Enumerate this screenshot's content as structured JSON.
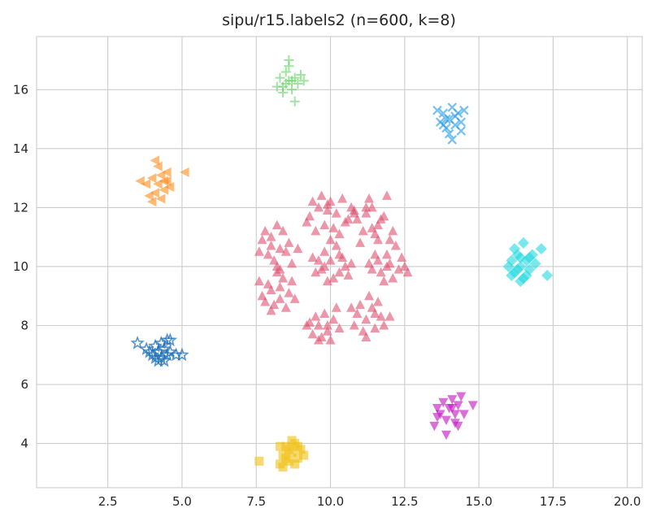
{
  "chart_data": {
    "type": "scatter",
    "title": "sipu/r15.labels2 (n=600, k=8)",
    "xlabel": "",
    "ylabel": "",
    "xlim": [
      0.1,
      20.5
    ],
    "ylim": [
      2.5,
      17.8
    ],
    "xticks": [
      2.5,
      5.0,
      7.5,
      10.0,
      12.5,
      15.0,
      17.5,
      20.0
    ],
    "xtick_labels": [
      "2.5",
      "5.0",
      "7.5",
      "10.0",
      "12.5",
      "15.0",
      "17.5",
      "20.0"
    ],
    "yticks": [
      4,
      6,
      8,
      10,
      12,
      14,
      16
    ],
    "ytick_labels": [
      "4",
      "6",
      "8",
      "10",
      "12",
      "14",
      "16"
    ],
    "grid": true,
    "legend": "none",
    "series": [
      {
        "marker": "triangle-up",
        "color": "#e05070",
        "points": [
          [
            10.2,
            11.8
          ],
          [
            9.6,
            12.0
          ],
          [
            10.6,
            11.6
          ],
          [
            9.3,
            11.7
          ],
          [
            10.0,
            12.2
          ],
          [
            9.8,
            11.4
          ],
          [
            10.4,
            12.3
          ],
          [
            9.5,
            11.2
          ],
          [
            10.7,
            12.0
          ],
          [
            9.9,
            11.9
          ],
          [
            10.1,
            11.3
          ],
          [
            9.4,
            12.2
          ],
          [
            10.5,
            11.5
          ],
          [
            9.7,
            12.4
          ],
          [
            10.3,
            11.1
          ],
          [
            9.2,
            11.5
          ],
          [
            10.8,
            11.8
          ],
          [
            9.9,
            12.1
          ],
          [
            11.2,
            11.8
          ],
          [
            11.6,
            11.4
          ],
          [
            10.9,
            11.6
          ],
          [
            11.4,
            12.0
          ],
          [
            11.8,
            11.7
          ],
          [
            11.1,
            11.2
          ],
          [
            11.5,
            11.1
          ],
          [
            10.8,
            11.9
          ],
          [
            11.3,
            12.3
          ],
          [
            11.9,
            12.4
          ],
          [
            11.0,
            10.8
          ],
          [
            11.7,
            11.6
          ],
          [
            12.1,
            11.2
          ],
          [
            11.2,
            12.0
          ],
          [
            11.6,
            10.9
          ],
          [
            11.4,
            11.3
          ],
          [
            8.0,
            11.0
          ],
          [
            8.3,
            10.6
          ],
          [
            7.9,
            10.4
          ],
          [
            8.4,
            11.2
          ],
          [
            8.1,
            10.2
          ],
          [
            8.6,
            10.8
          ],
          [
            7.7,
            10.9
          ],
          [
            8.2,
            11.4
          ],
          [
            8.5,
            10.5
          ],
          [
            7.8,
            11.2
          ],
          [
            8.3,
            9.9
          ],
          [
            8.7,
            10.1
          ],
          [
            8.0,
            10.7
          ],
          [
            8.9,
            10.6
          ],
          [
            7.6,
            10.5
          ],
          [
            8.2,
            10.0
          ],
          [
            10.0,
            10.2
          ],
          [
            9.7,
            9.9
          ],
          [
            10.3,
            9.8
          ],
          [
            9.8,
            10.5
          ],
          [
            10.1,
            9.6
          ],
          [
            10.4,
            10.3
          ],
          [
            9.6,
            10.2
          ],
          [
            10.2,
            10.7
          ],
          [
            9.9,
            9.5
          ],
          [
            10.5,
            10.0
          ],
          [
            9.5,
            9.8
          ],
          [
            10.0,
            10.9
          ],
          [
            10.6,
            9.7
          ],
          [
            9.8,
            10.0
          ],
          [
            10.3,
            10.4
          ],
          [
            9.4,
            10.3
          ],
          [
            10.7,
            10.1
          ],
          [
            12.0,
            10.1
          ],
          [
            11.7,
            9.8
          ],
          [
            12.3,
            9.9
          ],
          [
            11.9,
            10.4
          ],
          [
            12.1,
            9.6
          ],
          [
            12.4,
            10.3
          ],
          [
            11.6,
            10.2
          ],
          [
            12.2,
            10.7
          ],
          [
            11.8,
            9.5
          ],
          [
            12.5,
            10.0
          ],
          [
            11.5,
            10.4
          ],
          [
            12.0,
            10.9
          ],
          [
            11.3,
            10.1
          ],
          [
            12.6,
            9.8
          ],
          [
            11.9,
            10.0
          ],
          [
            11.4,
            9.9
          ],
          [
            8.0,
            9.2
          ],
          [
            8.3,
            8.9
          ],
          [
            7.9,
            9.4
          ],
          [
            8.4,
            9.6
          ],
          [
            8.1,
            8.7
          ],
          [
            8.6,
            9.1
          ],
          [
            7.7,
            9.0
          ],
          [
            8.2,
            9.8
          ],
          [
            8.5,
            8.6
          ],
          [
            7.8,
            8.8
          ],
          [
            8.3,
            9.3
          ],
          [
            8.7,
            9.5
          ],
          [
            8.0,
            8.5
          ],
          [
            8.8,
            8.9
          ],
          [
            7.6,
            9.5
          ],
          [
            9.6,
            8.0
          ],
          [
            9.9,
            7.8
          ],
          [
            9.3,
            8.1
          ],
          [
            10.1,
            8.2
          ],
          [
            9.7,
            7.6
          ],
          [
            10.3,
            7.9
          ],
          [
            9.4,
            7.7
          ],
          [
            9.8,
            8.4
          ],
          [
            10.0,
            7.5
          ],
          [
            9.2,
            8.0
          ],
          [
            9.5,
            8.3
          ],
          [
            10.2,
            8.6
          ],
          [
            9.9,
            8.0
          ],
          [
            9.6,
            7.5
          ],
          [
            11.2,
            8.2
          ],
          [
            11.5,
            7.9
          ],
          [
            10.9,
            8.4
          ],
          [
            11.4,
            8.6
          ],
          [
            11.7,
            8.3
          ],
          [
            11.1,
            7.8
          ],
          [
            11.6,
            8.8
          ],
          [
            10.8,
            8.0
          ],
          [
            11.3,
            9.0
          ],
          [
            11.8,
            8.0
          ],
          [
            11.0,
            8.7
          ],
          [
            11.5,
            8.4
          ],
          [
            11.2,
            7.6
          ],
          [
            10.7,
            8.6
          ],
          [
            12.0,
            8.3
          ]
        ]
      },
      {
        "marker": "diamond",
        "color": "#20d8e0",
        "points": [
          [
            16.4,
            10.0
          ],
          [
            16.2,
            9.8
          ],
          [
            16.6,
            10.2
          ],
          [
            16.3,
            10.4
          ],
          [
            16.5,
            9.6
          ],
          [
            16.7,
            9.9
          ],
          [
            16.1,
            10.2
          ],
          [
            16.4,
            9.5
          ],
          [
            16.8,
            10.4
          ],
          [
            16.2,
            10.6
          ],
          [
            16.6,
            9.7
          ],
          [
            16.0,
            10.0
          ],
          [
            16.5,
            10.8
          ],
          [
            16.9,
            10.1
          ],
          [
            16.3,
            9.9
          ],
          [
            16.7,
            10.3
          ],
          [
            17.1,
            10.6
          ],
          [
            17.3,
            9.7
          ],
          [
            16.4,
            10.3
          ],
          [
            16.1,
            9.7
          ]
        ]
      },
      {
        "marker": "x",
        "color": "#30a0e8",
        "points": [
          [
            14.0,
            15.0
          ],
          [
            13.8,
            15.2
          ],
          [
            14.2,
            14.8
          ],
          [
            13.9,
            14.7
          ],
          [
            14.3,
            15.2
          ],
          [
            14.1,
            15.4
          ],
          [
            13.7,
            14.9
          ],
          [
            14.4,
            14.9
          ],
          [
            14.0,
            14.5
          ],
          [
            13.6,
            15.3
          ],
          [
            14.2,
            15.1
          ],
          [
            13.9,
            15.0
          ],
          [
            14.5,
            15.3
          ],
          [
            14.1,
            14.3
          ],
          [
            14.4,
            14.6
          ],
          [
            13.8,
            14.8
          ]
        ]
      },
      {
        "marker": "plus",
        "color": "#60d060",
        "points": [
          [
            8.6,
            16.3
          ],
          [
            8.4,
            16.1
          ],
          [
            8.8,
            16.4
          ],
          [
            8.5,
            16.6
          ],
          [
            8.7,
            16.0
          ],
          [
            8.3,
            16.4
          ],
          [
            8.9,
            16.2
          ],
          [
            8.6,
            16.8
          ],
          [
            8.4,
            15.9
          ],
          [
            9.0,
            16.5
          ],
          [
            8.7,
            16.3
          ],
          [
            8.5,
            16.2
          ],
          [
            8.8,
            15.6
          ],
          [
            8.6,
            17.0
          ],
          [
            8.2,
            16.1
          ],
          [
            9.1,
            16.3
          ]
        ]
      },
      {
        "marker": "triangle-left",
        "color": "#ff8c1a",
        "points": [
          [
            4.2,
            12.8
          ],
          [
            4.4,
            12.6
          ],
          [
            4.0,
            13.0
          ],
          [
            4.3,
            13.1
          ],
          [
            4.5,
            12.9
          ],
          [
            4.1,
            12.5
          ],
          [
            4.6,
            12.7
          ],
          [
            3.9,
            12.4
          ],
          [
            4.3,
            12.3
          ],
          [
            4.5,
            13.2
          ],
          [
            4.2,
            13.4
          ],
          [
            3.8,
            12.8
          ],
          [
            4.0,
            12.2
          ],
          [
            4.4,
            12.9
          ],
          [
            4.1,
            13.6
          ],
          [
            5.1,
            13.2
          ],
          [
            3.6,
            12.9
          ]
        ]
      },
      {
        "marker": "star",
        "color": "#1f70b8",
        "points": [
          [
            4.2,
            7.1
          ],
          [
            4.0,
            7.0
          ],
          [
            4.4,
            7.2
          ],
          [
            4.3,
            6.9
          ],
          [
            4.1,
            7.3
          ],
          [
            4.5,
            7.0
          ],
          [
            3.9,
            7.1
          ],
          [
            4.2,
            6.8
          ],
          [
            4.6,
            7.1
          ],
          [
            4.3,
            7.4
          ],
          [
            4.8,
            7.0
          ],
          [
            5.0,
            7.0
          ],
          [
            4.5,
            7.5
          ],
          [
            3.5,
            7.4
          ],
          [
            3.8,
            7.2
          ],
          [
            4.1,
            6.9
          ],
          [
            4.4,
            6.8
          ],
          [
            4.6,
            7.5
          ]
        ]
      },
      {
        "marker": "triangle-down",
        "color": "#c010c0",
        "points": [
          [
            14.0,
            5.2
          ],
          [
            13.8,
            5.4
          ],
          [
            14.2,
            5.0
          ],
          [
            14.1,
            5.5
          ],
          [
            13.7,
            5.0
          ],
          [
            14.3,
            5.3
          ],
          [
            13.9,
            4.8
          ],
          [
            14.4,
            5.6
          ],
          [
            14.2,
            4.7
          ],
          [
            13.6,
            5.2
          ],
          [
            14.5,
            5.0
          ],
          [
            14.1,
            5.2
          ],
          [
            13.5,
            4.6
          ],
          [
            14.8,
            5.3
          ],
          [
            14.3,
            4.6
          ],
          [
            13.9,
            4.3
          ],
          [
            13.6,
            4.9
          ]
        ]
      },
      {
        "marker": "square",
        "color": "#f0c010",
        "points": [
          [
            8.7,
            3.7
          ],
          [
            8.5,
            3.9
          ],
          [
            8.9,
            3.5
          ],
          [
            8.6,
            3.4
          ],
          [
            8.8,
            4.0
          ],
          [
            8.4,
            3.6
          ],
          [
            9.0,
            3.8
          ],
          [
            8.7,
            4.1
          ],
          [
            8.3,
            3.3
          ],
          [
            9.1,
            3.6
          ],
          [
            8.6,
            3.8
          ],
          [
            8.8,
            3.3
          ],
          [
            8.5,
            3.5
          ],
          [
            8.9,
            3.9
          ],
          [
            8.3,
            3.9
          ],
          [
            7.6,
            3.4
          ],
          [
            8.4,
            3.2
          ]
        ]
      }
    ]
  }
}
